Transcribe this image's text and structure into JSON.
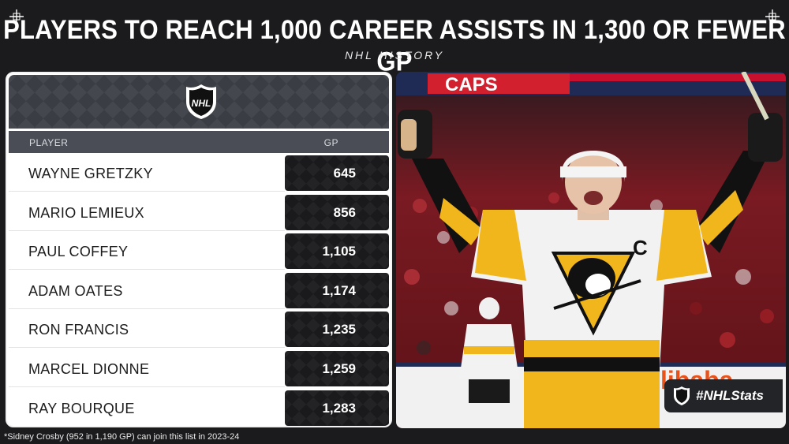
{
  "header": {
    "title": "PLAYERS TO REACH 1,000 CAREER ASSISTS IN 1,300 OR FEWER GP",
    "subtitle": "NHL HISTORY"
  },
  "table": {
    "col_player": "PLAYER",
    "col_gp": "GP",
    "rows": [
      {
        "player": "WAYNE GRETZKY",
        "gp": "645"
      },
      {
        "player": "MARIO LEMIEUX",
        "gp": "856"
      },
      {
        "player": "PAUL COFFEY",
        "gp": "1,105"
      },
      {
        "player": "ADAM OATES",
        "gp": "1,174"
      },
      {
        "player": "RON FRANCIS",
        "gp": "1,235"
      },
      {
        "player": "MARCEL DIONNE",
        "gp": "1,259"
      },
      {
        "player": "RAY BOURQUE",
        "gp": "1,283"
      }
    ]
  },
  "photo": {
    "banner_text": "CAPS",
    "sponsor_text": "libaba",
    "captain_letter": "C"
  },
  "badge": {
    "label": "#NHLStats"
  },
  "footnote": "*Sidney Crosby (952 in 1,190 GP) can join this list in 2023-24",
  "colors": {
    "background": "#1b1b1d",
    "jersey_gold": "#f2b61d",
    "jersey_white": "#f2f2f2",
    "arena_red": "#b5232b"
  }
}
